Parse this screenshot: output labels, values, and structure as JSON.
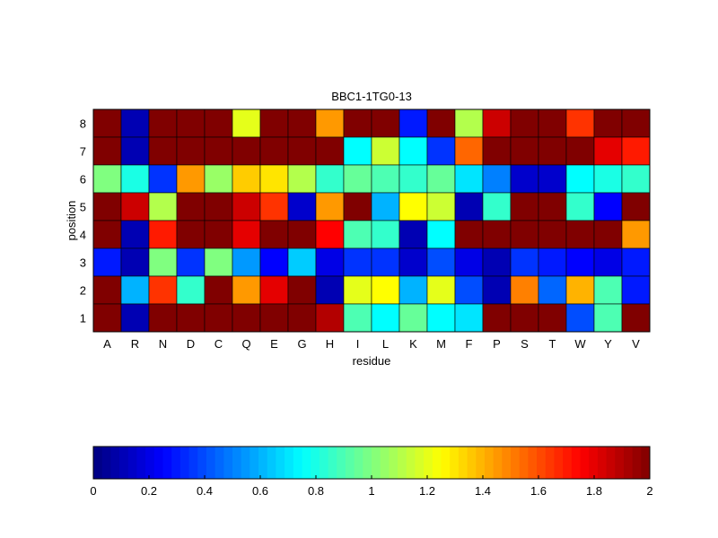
{
  "chart_data": {
    "type": "heatmap",
    "title": "BBC1-1TG0-13",
    "xlabel": "residue",
    "ylabel": "position",
    "x_categories": [
      "A",
      "R",
      "N",
      "D",
      "C",
      "Q",
      "E",
      "G",
      "H",
      "I",
      "L",
      "K",
      "M",
      "F",
      "P",
      "S",
      "T",
      "W",
      "Y",
      "V"
    ],
    "y_categories": [
      "8",
      "7",
      "6",
      "5",
      "4",
      "3",
      "2",
      "1"
    ],
    "values": [
      [
        2.0,
        0.1,
        2.0,
        2.0,
        2.0,
        1.2,
        2.0,
        2.0,
        1.45,
        2.0,
        2.0,
        0.3,
        2.0,
        1.1,
        1.85,
        2.0,
        2.0,
        1.65,
        2.0,
        2.0
      ],
      [
        2.0,
        0.1,
        2.0,
        2.0,
        2.0,
        2.0,
        2.0,
        2.0,
        2.0,
        0.75,
        1.15,
        0.75,
        0.35,
        1.55,
        2.0,
        2.0,
        2.0,
        2.0,
        1.8,
        1.7
      ],
      [
        1.0,
        0.8,
        0.35,
        1.45,
        1.05,
        1.35,
        1.3,
        1.1,
        0.85,
        0.95,
        0.9,
        0.85,
        0.95,
        0.7,
        0.5,
        0.15,
        0.15,
        0.75,
        0.8,
        0.85
      ],
      [
        2.0,
        1.85,
        1.1,
        2.0,
        2.0,
        1.85,
        1.65,
        0.15,
        1.45,
        2.0,
        0.6,
        1.25,
        1.15,
        0.1,
        0.85,
        2.0,
        2.0,
        0.85,
        0.25,
        2.0
      ],
      [
        2.0,
        0.1,
        1.7,
        2.0,
        2.0,
        1.8,
        2.0,
        2.0,
        1.75,
        0.9,
        0.85,
        0.1,
        0.75,
        2.0,
        2.0,
        2.0,
        2.0,
        2.0,
        2.0,
        1.45
      ],
      [
        0.3,
        0.1,
        1.0,
        0.35,
        1.0,
        0.55,
        0.25,
        0.65,
        0.2,
        0.35,
        0.35,
        0.15,
        0.4,
        0.2,
        0.1,
        0.35,
        0.3,
        0.25,
        0.2,
        0.3
      ],
      [
        2.0,
        0.6,
        1.65,
        0.85,
        2.0,
        1.45,
        1.8,
        2.0,
        0.1,
        1.2,
        1.25,
        0.6,
        1.2,
        0.4,
        0.1,
        1.5,
        0.45,
        1.4,
        0.9,
        0.3
      ],
      [
        2.0,
        0.1,
        2.0,
        2.0,
        2.0,
        2.0,
        2.0,
        2.0,
        1.9,
        0.9,
        0.75,
        0.95,
        0.75,
        0.7,
        2.0,
        2.0,
        2.0,
        0.4,
        0.9,
        2.0
      ]
    ],
    "colorbar": {
      "colormap": "jet",
      "range": [
        0,
        2
      ],
      "ticks": [
        "0",
        "0.2",
        "0.4",
        "0.6",
        "0.8",
        "1",
        "1.2",
        "1.4",
        "1.6",
        "1.8",
        "2"
      ]
    },
    "grid": false,
    "legend": "colorbar-bottom"
  }
}
